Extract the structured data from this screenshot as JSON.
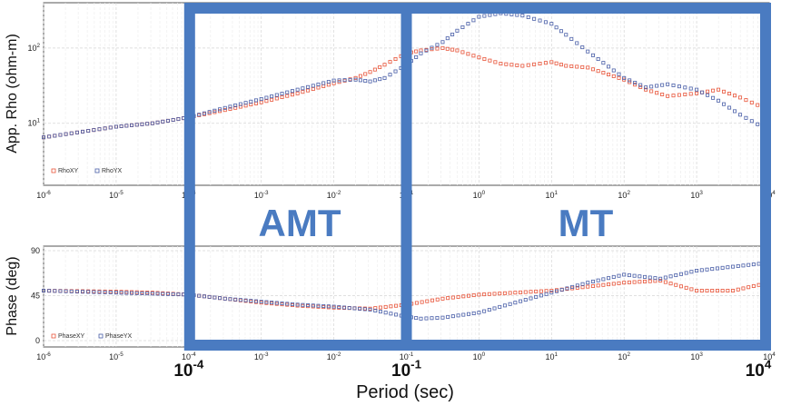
{
  "chart_data": [
    {
      "type": "scatter",
      "panel": "top",
      "ylabel": "App. Rho (ohm-m)",
      "xscale": "log",
      "yscale": "log",
      "xlim": [
        1e-06,
        10000.0
      ],
      "ylim": [
        1.5,
        400
      ],
      "grid": true,
      "legend_position": "bottom-left",
      "x_tick_labels": [
        {
          "base": "10",
          "exp": "-6"
        },
        {
          "base": "10",
          "exp": "-5"
        },
        {
          "base": "10",
          "exp": "-4"
        },
        {
          "base": "10",
          "exp": "-3"
        },
        {
          "base": "10",
          "exp": "-2"
        },
        {
          "base": "10",
          "exp": "-1"
        },
        {
          "base": "10",
          "exp": "0"
        },
        {
          "base": "10",
          "exp": "1"
        },
        {
          "base": "10",
          "exp": "2"
        },
        {
          "base": "10",
          "exp": "3"
        },
        {
          "base": "10",
          "exp": "4"
        }
      ],
      "y_tick_labels": [
        {
          "base": "10",
          "exp": "1",
          "value": 10
        },
        {
          "base": "10",
          "exp": "2",
          "value": 100
        }
      ],
      "series": [
        {
          "name": "RhoXY",
          "color": "#e8553a",
          "log10x": [
            -6,
            -5,
            -4.5,
            -4,
            -3.5,
            -3,
            -2.5,
            -2,
            -1.7,
            -1.5,
            -1.3,
            -1,
            -0.8,
            -0.5,
            -0.3,
            0,
            0.3,
            0.6,
            1,
            1.2,
            1.5,
            2,
            2.3,
            2.6,
            3,
            3.3,
            3.6,
            4
          ],
          "y": [
            6.5,
            9,
            10,
            12,
            15,
            19,
            25,
            34,
            40,
            48,
            60,
            85,
            93,
            100,
            93,
            75,
            62,
            58,
            65,
            58,
            55,
            38,
            28,
            23,
            25,
            28,
            22,
            15
          ]
        },
        {
          "name": "RhoYX",
          "color": "#4a5fa8",
          "log10x": [
            -6,
            -5,
            -4.5,
            -4,
            -3.5,
            -3,
            -2.5,
            -2,
            -1.7,
            -1.5,
            -1.3,
            -1,
            -0.8,
            -0.5,
            -0.3,
            0,
            0.3,
            0.6,
            1,
            1.2,
            1.5,
            2,
            2.3,
            2.6,
            3,
            3.3,
            3.6,
            4
          ],
          "y": [
            6.5,
            9,
            10,
            12,
            16,
            21,
            28,
            37,
            38,
            36,
            40,
            60,
            85,
            120,
            170,
            260,
            290,
            270,
            210,
            150,
            90,
            40,
            30,
            33,
            28,
            20,
            13,
            8
          ]
        }
      ]
    },
    {
      "type": "scatter",
      "panel": "bottom",
      "ylabel": "Phase (deg)",
      "xlabel": "Period (sec)",
      "xscale": "log",
      "xlim": [
        1e-06,
        10000.0
      ],
      "ylim": [
        0,
        90
      ],
      "yticks": [
        0,
        45,
        90
      ],
      "grid": true,
      "legend_position": "bottom-left",
      "x_tick_labels": [
        {
          "base": "10",
          "exp": "-6"
        },
        {
          "base": "10",
          "exp": "-5"
        },
        {
          "base": "10",
          "exp": "-4"
        },
        {
          "base": "10",
          "exp": "-3"
        },
        {
          "base": "10",
          "exp": "-2"
        },
        {
          "base": "10",
          "exp": "-1"
        },
        {
          "base": "10",
          "exp": "0"
        },
        {
          "base": "10",
          "exp": "1"
        },
        {
          "base": "10",
          "exp": "2"
        },
        {
          "base": "10",
          "exp": "3"
        },
        {
          "base": "10",
          "exp": "4"
        }
      ],
      "series": [
        {
          "name": "PhaseXY",
          "color": "#e8553a",
          "log10x": [
            -6,
            -5,
            -4.5,
            -4,
            -3.5,
            -3,
            -2.5,
            -2,
            -1.5,
            -1,
            -0.5,
            0,
            0.5,
            1,
            1.5,
            2,
            2.5,
            3,
            3.5,
            4
          ],
          "y": [
            50,
            49,
            48,
            46,
            42,
            38,
            35,
            33,
            32,
            36,
            42,
            46,
            48,
            50,
            54,
            58,
            60,
            50,
            50,
            58
          ]
        },
        {
          "name": "PhaseYX",
          "color": "#4a5fa8",
          "log10x": [
            -6,
            -5,
            -4.5,
            -4,
            -3.5,
            -3,
            -2.5,
            -2,
            -1.5,
            -1,
            -0.8,
            -0.5,
            0,
            0.5,
            1,
            1.5,
            2,
            2.5,
            3,
            3.5,
            4
          ],
          "y": [
            50,
            48,
            47,
            46,
            42,
            39,
            36,
            34,
            31,
            24,
            22,
            23,
            28,
            38,
            48,
            58,
            66,
            62,
            70,
            74,
            78
          ]
        }
      ]
    }
  ],
  "overlay": {
    "amt_label": "AMT",
    "mt_label": "MT",
    "color": "#4a7bc1",
    "amt_range_log10": [
      -4,
      -1
    ],
    "mt_range_log10": [
      -1,
      4
    ],
    "big_tick_labels": [
      {
        "base": "10",
        "exp": "-4",
        "log10x": -4
      },
      {
        "base": "10",
        "exp": "-1",
        "log10x": -1
      },
      {
        "base": "10",
        "exp": "4",
        "log10x": 4
      }
    ]
  }
}
